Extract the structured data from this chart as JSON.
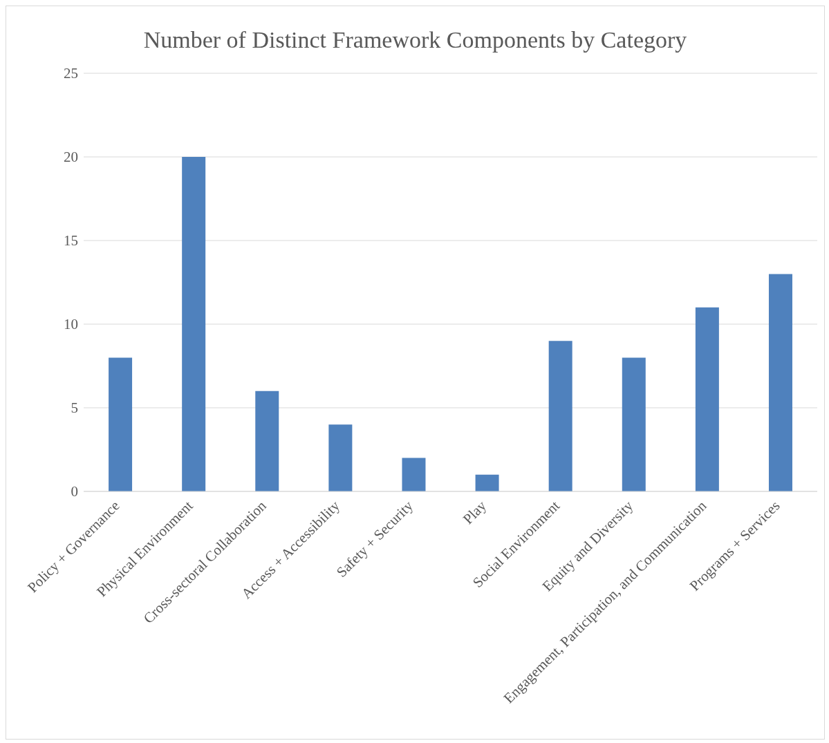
{
  "chart_data": {
    "type": "bar",
    "title": "Number of Distinct Framework Components by Category",
    "categories": [
      "Policy + Governance",
      "Physical Environment",
      "Cross-sectoral Collaboration",
      "Access + Accessibility",
      "Safety + Security",
      "Play",
      "Social Environment",
      "Equity and Diversity",
      "Engagement, Participation, and Communication",
      "Programs + Services"
    ],
    "values": [
      8,
      20,
      6,
      4,
      2,
      1,
      9,
      8,
      11,
      13
    ],
    "color": "#4f81bd",
    "ylim": [
      0,
      25
    ],
    "yticks": [
      0,
      5,
      10,
      15,
      20,
      25
    ],
    "grid": "y"
  }
}
